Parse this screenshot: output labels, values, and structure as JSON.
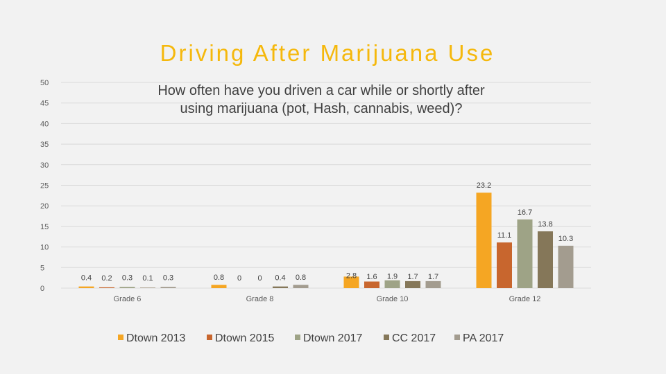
{
  "slide": {
    "title": "Driving After Marijuana Use"
  },
  "colors": {
    "title": "#f5b80c",
    "Dtown 2013": "#f5a623",
    "Dtown 2015": "#c8662e",
    "Dtown 2017": "#9ea386",
    "CC 2017": "#857759",
    "PA 2017": "#a39c8f"
  },
  "chart_data": {
    "type": "bar",
    "title_lines": [
      "How often have you driven a car while or shortly after",
      "using marijuana (pot, Hash, cannabis, weed)?"
    ],
    "categories": [
      "Grade 6",
      "Grade 8",
      "Grade 10",
      "Grade 12"
    ],
    "series": [
      {
        "name": "Dtown 2013",
        "values": [
          0.4,
          0.8,
          2.8,
          23.2
        ]
      },
      {
        "name": "Dtown 2015",
        "values": [
          0.2,
          0,
          1.6,
          11.1
        ]
      },
      {
        "name": "Dtown 2017",
        "values": [
          0.3,
          0,
          1.9,
          16.7
        ]
      },
      {
        "name": "CC 2017",
        "values": [
          0.1,
          0.4,
          1.7,
          13.8
        ]
      },
      {
        "name": "PA 2017",
        "values": [
          0.3,
          0.8,
          1.7,
          10.3
        ]
      }
    ],
    "ylim": [
      0,
      50
    ],
    "yticks": [
      0,
      5,
      10,
      15,
      20,
      25,
      30,
      35,
      40,
      45,
      50
    ],
    "grid": true,
    "legend_position": "bottom"
  }
}
